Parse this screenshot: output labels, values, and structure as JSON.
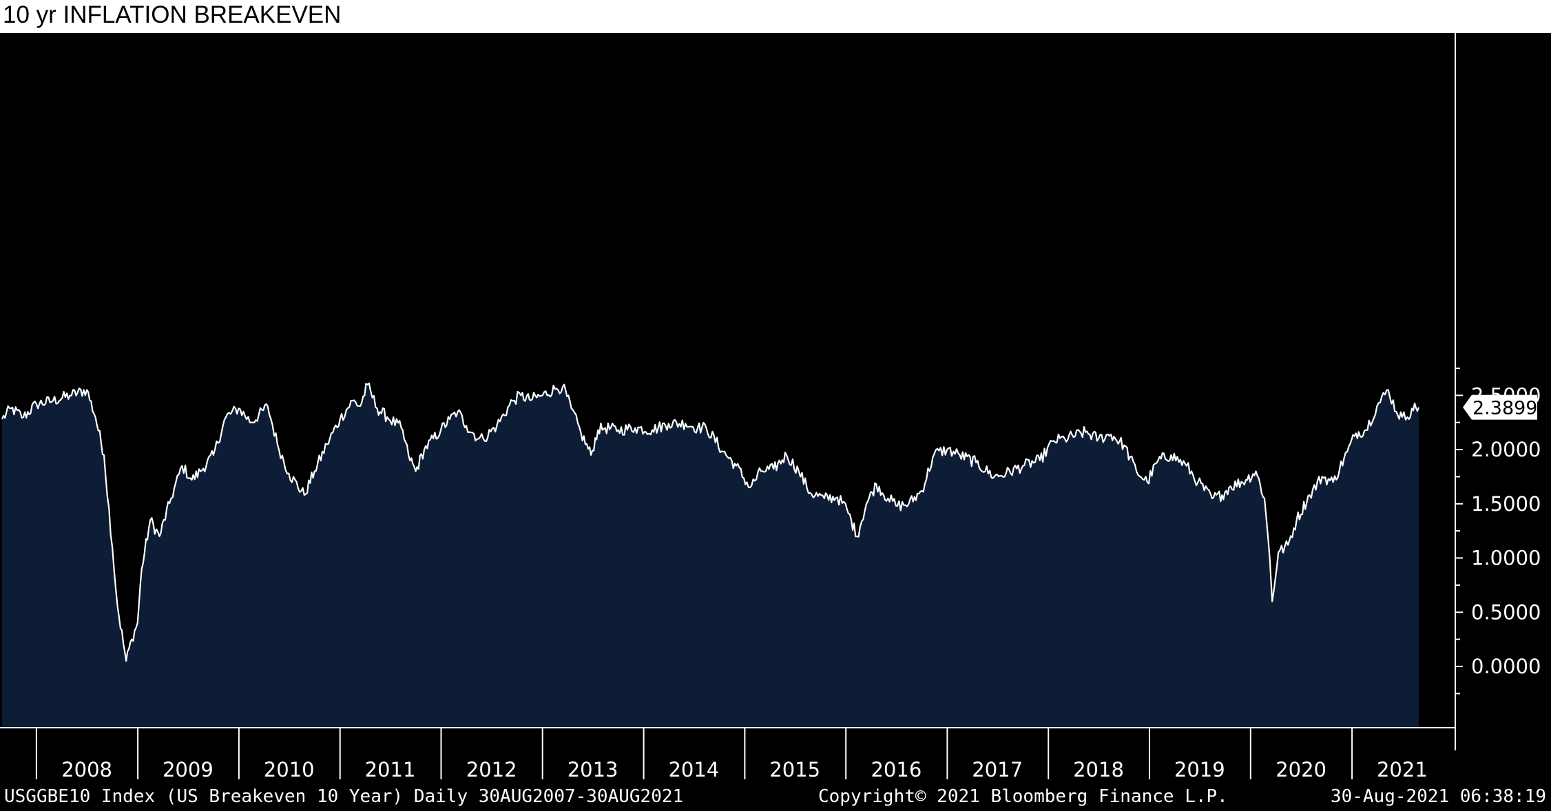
{
  "chart_data": {
    "type": "area",
    "title": "10 yr INFLATION BREAKEVEN",
    "xlabel": "",
    "ylabel": "",
    "xlim": [
      "2007-08-30",
      "2021-08-30"
    ],
    "ylim": [
      -0.25,
      2.9
    ],
    "y_ticks": [
      "2.5000",
      "2.0000",
      "1.5000",
      "1.0000",
      "0.5000",
      "0.0000"
    ],
    "x_ticks": [
      "2008",
      "2009",
      "2010",
      "2011",
      "2012",
      "2013",
      "2014",
      "2015",
      "2016",
      "2017",
      "2018",
      "2019",
      "2020",
      "2021"
    ],
    "grid": false,
    "legend": "none",
    "last_value_label": "2.3899",
    "series": [
      {
        "line_color": "#ffffff",
        "fill_color": "#0d1d35",
        "x": [
          "2007-08-30",
          "2007-10-01",
          "2007-11-15",
          "2008-01-01",
          "2008-03-01",
          "2008-05-01",
          "2008-07-01",
          "2008-08-01",
          "2008-09-01",
          "2008-10-01",
          "2008-10-20",
          "2008-11-20",
          "2008-12-10",
          "2008-12-31",
          "2009-01-15",
          "2009-02-15",
          "2009-03-20",
          "2009-05-01",
          "2009-06-10",
          "2009-07-15",
          "2009-08-15",
          "2009-10-01",
          "2009-11-15",
          "2009-12-31",
          "2010-02-15",
          "2010-04-15",
          "2010-05-20",
          "2010-06-30",
          "2010-08-25",
          "2010-10-01",
          "2010-11-15",
          "2011-01-01",
          "2011-02-15",
          "2011-03-15",
          "2011-04-10",
          "2011-05-15",
          "2011-06-20",
          "2011-08-10",
          "2011-09-05",
          "2011-10-01",
          "2011-11-01",
          "2011-12-31",
          "2012-02-01",
          "2012-03-01",
          "2012-04-01",
          "2012-05-15",
          "2012-06-01",
          "2012-07-20",
          "2012-09-15",
          "2012-10-15",
          "2012-11-15",
          "2013-01-01",
          "2013-02-15",
          "2013-03-15",
          "2013-04-15",
          "2013-05-20",
          "2013-06-25",
          "2013-07-20",
          "2013-08-15",
          "2013-10-01",
          "2013-12-01",
          "2014-02-01",
          "2014-04-01",
          "2014-06-01",
          "2014-07-15",
          "2014-08-15",
          "2014-10-15",
          "2014-12-01",
          "2015-01-20",
          "2015-03-01",
          "2015-04-15",
          "2015-06-01",
          "2015-07-15",
          "2015-08-25",
          "2015-10-15",
          "2015-12-01",
          "2016-01-05",
          "2016-02-10",
          "2016-03-15",
          "2016-04-20",
          "2016-06-01",
          "2016-07-05",
          "2016-08-15",
          "2016-10-01",
          "2016-11-15",
          "2016-12-31",
          "2017-02-15",
          "2017-04-15",
          "2017-06-20",
          "2017-08-01",
          "2017-10-01",
          "2017-12-01",
          "2018-01-20",
          "2018-03-01",
          "2018-05-15",
          "2018-07-01",
          "2018-08-15",
          "2018-10-01",
          "2018-11-15",
          "2018-12-24",
          "2019-02-01",
          "2019-03-20",
          "2019-05-15",
          "2019-06-25",
          "2019-08-15",
          "2019-09-20",
          "2019-10-15",
          "2019-12-15",
          "2020-01-20",
          "2020-02-20",
          "2020-03-10",
          "2020-03-19",
          "2020-04-10",
          "2020-05-15",
          "2020-06-15",
          "2020-08-01",
          "2020-09-15",
          "2020-10-25",
          "2020-12-15",
          "2021-01-15",
          "2021-02-20",
          "2021-04-01",
          "2021-05-12",
          "2021-06-10",
          "2021-07-01",
          "2021-07-20",
          "2021-08-05",
          "2021-08-30"
        ],
        "y": [
          2.28,
          2.38,
          2.3,
          2.42,
          2.45,
          2.5,
          2.55,
          2.3,
          1.95,
          1.1,
          0.55,
          0.05,
          0.25,
          0.4,
          0.9,
          1.35,
          1.2,
          1.55,
          1.85,
          1.72,
          1.8,
          1.95,
          2.3,
          2.38,
          2.25,
          2.4,
          2.05,
          1.78,
          1.58,
          1.8,
          2.05,
          2.28,
          2.45,
          2.4,
          2.6,
          2.38,
          2.3,
          2.2,
          1.95,
          1.8,
          2.0,
          2.18,
          2.28,
          2.35,
          2.22,
          2.1,
          2.1,
          2.22,
          2.45,
          2.5,
          2.46,
          2.5,
          2.56,
          2.58,
          2.38,
          2.15,
          1.95,
          2.18,
          2.2,
          2.18,
          2.2,
          2.18,
          2.24,
          2.24,
          2.2,
          2.2,
          1.98,
          1.85,
          1.65,
          1.8,
          1.82,
          1.95,
          1.8,
          1.6,
          1.55,
          1.56,
          1.45,
          1.2,
          1.5,
          1.68,
          1.55,
          1.48,
          1.5,
          1.62,
          1.96,
          2.0,
          1.95,
          1.88,
          1.75,
          1.78,
          1.85,
          1.9,
          2.08,
          2.1,
          2.16,
          2.1,
          2.14,
          2.04,
          1.8,
          1.7,
          1.9,
          1.95,
          1.85,
          1.7,
          1.55,
          1.58,
          1.65,
          1.72,
          1.8,
          1.55,
          1.0,
          0.6,
          1.05,
          1.12,
          1.35,
          1.58,
          1.75,
          1.7,
          1.98,
          2.15,
          2.18,
          2.4,
          2.55,
          2.35,
          2.3,
          2.3,
          2.38,
          2.3899
        ]
      }
    ]
  },
  "footer": {
    "left": "USGGBE10 Index (US Breakeven 10 Year)  Daily 30AUG2007-30AUG2021",
    "center": "Copyright© 2021 Bloomberg Finance L.P.",
    "right": "30-Aug-2021 06:38:19"
  }
}
